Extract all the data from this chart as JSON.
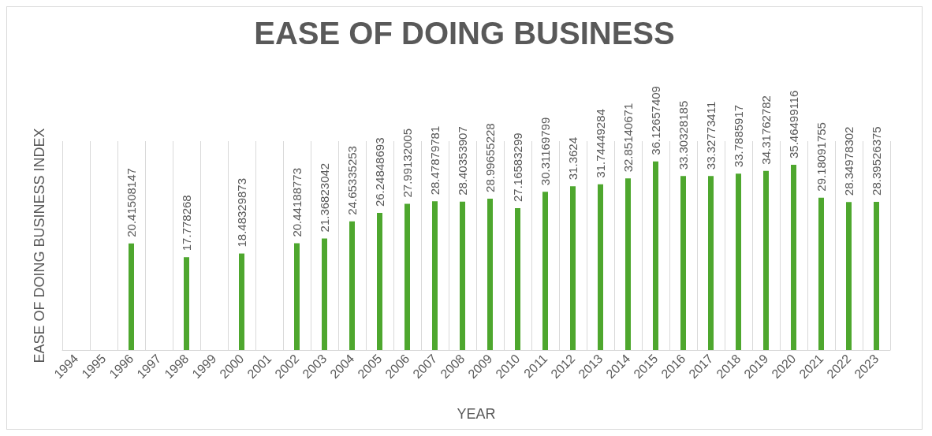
{
  "chart_data": {
    "type": "bar",
    "title": "EASE OF DOING BUSINESS",
    "xlabel": "YEAR",
    "ylabel": "EASE OF DOING BUSINESS INDEX",
    "categories": [
      "1994",
      "1995",
      "1996",
      "1997",
      "1998",
      "1999",
      "2000",
      "2001",
      "2002",
      "2003",
      "2004",
      "2005",
      "2006",
      "2007",
      "2008",
      "2009",
      "2010",
      "2011",
      "2012",
      "2013",
      "2014",
      "2015",
      "2016",
      "2017",
      "2018",
      "2019",
      "2020",
      "2021",
      "2022",
      "2023"
    ],
    "values": [
      null,
      null,
      20.41508147,
      null,
      17.778268,
      null,
      18.48329873,
      null,
      20.44188773,
      21.36823042,
      24.65335253,
      26.24848693,
      27.99132005,
      28.47879781,
      28.40353907,
      28.99655228,
      27.16583299,
      30.31169799,
      31.3624,
      31.74449284,
      32.85140671,
      36.12657409,
      33.30328185,
      33.32773411,
      33.7885917,
      34.31762782,
      35.46499116,
      29.18091755,
      28.34978302,
      28.39526375
    ],
    "color": "#4ea72e",
    "data_labels": true,
    "grid": "x"
  }
}
